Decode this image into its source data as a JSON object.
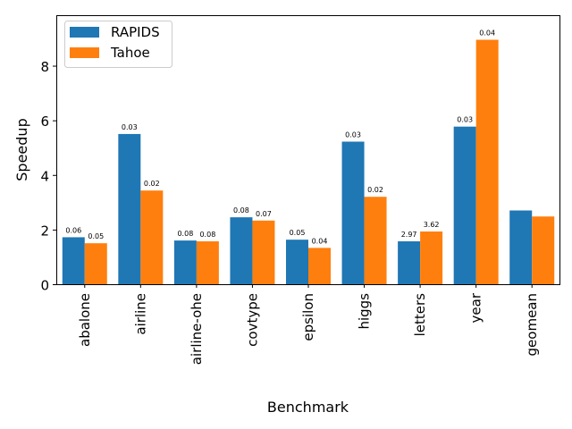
{
  "chart_data": {
    "type": "bar",
    "xlabel": "Benchmark",
    "ylabel": "Speedup",
    "ylim": [
      0,
      9.85
    ],
    "yticks": [
      0,
      2,
      4,
      6,
      8
    ],
    "grid": false,
    "legend_position": "top-left",
    "categories": [
      "abalone",
      "airline",
      "airline-ohe",
      "covtype",
      "epsilon",
      "higgs",
      "letters",
      "year",
      "geomean"
    ],
    "series": [
      {
        "name": "RAPIDS",
        "color": "#1f77b4",
        "values": [
          1.72,
          5.5,
          1.6,
          2.45,
          1.63,
          5.22,
          1.57,
          5.77,
          2.7
        ],
        "labels": [
          "0.06",
          "0.03",
          "0.08",
          "0.08",
          "0.05",
          "0.03",
          "2.97",
          "0.03",
          ""
        ]
      },
      {
        "name": "Tahoe",
        "color": "#ff7f0e",
        "values": [
          1.5,
          3.43,
          1.57,
          2.33,
          1.33,
          3.2,
          1.93,
          8.95,
          2.48
        ],
        "labels": [
          "0.05",
          "0.02",
          "0.08",
          "0.07",
          "0.04",
          "0.02",
          "3.62",
          "0.04",
          ""
        ]
      }
    ]
  }
}
